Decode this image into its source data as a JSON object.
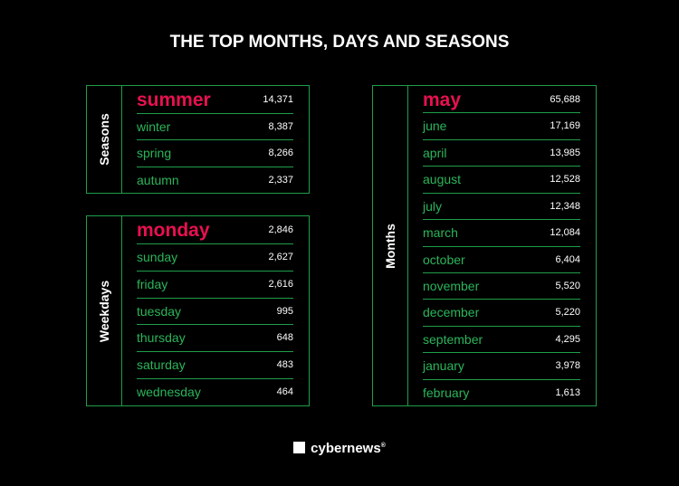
{
  "title": "THE TOP MONTHS, DAYS AND SEASONS",
  "tables": [
    {
      "label": "Seasons",
      "rows": [
        [
          "summer",
          "14,371"
        ],
        [
          "winter",
          "8,387"
        ],
        [
          "spring",
          "8,266"
        ],
        [
          "autumn",
          "2,337"
        ]
      ]
    },
    {
      "label": "Weekdays",
      "rows": [
        [
          "monday",
          "2,846"
        ],
        [
          "sunday",
          "2,627"
        ],
        [
          "friday",
          "2,616"
        ],
        [
          "tuesday",
          "995"
        ],
        [
          "thursday",
          "648"
        ],
        [
          "saturday",
          "483"
        ],
        [
          "wednesday",
          "464"
        ]
      ]
    },
    {
      "label": "Months",
      "rows": [
        [
          "may",
          "65,688"
        ],
        [
          "june",
          "17,169"
        ],
        [
          "april",
          "13,985"
        ],
        [
          "august",
          "12,528"
        ],
        [
          "july",
          "12,348"
        ],
        [
          "march",
          "12,084"
        ],
        [
          "october",
          "6,404"
        ],
        [
          "november",
          "5,520"
        ],
        [
          "december",
          "5,220"
        ],
        [
          "september",
          "4,295"
        ],
        [
          "january",
          "3,978"
        ],
        [
          "february",
          "1,613"
        ]
      ]
    }
  ],
  "footer": {
    "brand": "cybernews",
    "mark": "®"
  }
}
